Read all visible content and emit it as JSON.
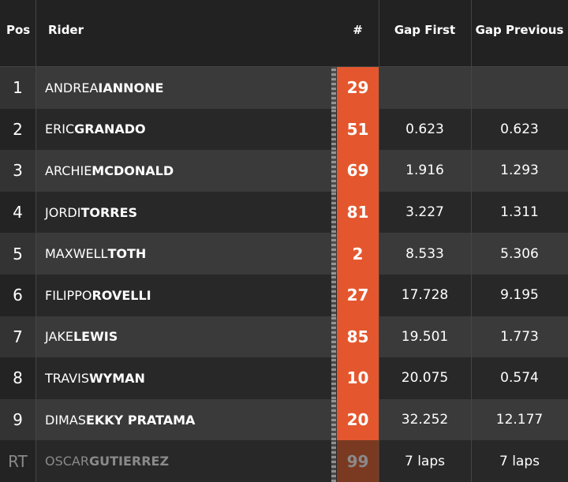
{
  "header": {
    "pos": "Pos",
    "rider": "Rider",
    "number": "#",
    "gap_first": "Gap First",
    "gap_previous": "Gap Previous"
  },
  "rows": [
    {
      "pos": "1",
      "first": "ANDREA",
      "last": "IANNONE",
      "number": "29"
    },
    {
      "pos": "2",
      "first": "ERIC",
      "last": "GRANADO",
      "number": "51",
      "gap_first": "0.623",
      "gap_previous": "0.623"
    },
    {
      "pos": "3",
      "first": "ARCHIE",
      "last": "MCDONALD",
      "number": "69",
      "gap_first": "1.916",
      "gap_previous": "1.293"
    },
    {
      "pos": "4",
      "first": "JORDI",
      "last": "TORRES",
      "number": "81",
      "gap_first": "3.227",
      "gap_previous": "1.311"
    },
    {
      "pos": "5",
      "first": "MAXWELL",
      "last": "TOTH",
      "number": "2",
      "gap_first": "8.533",
      "gap_previous": "5.306"
    },
    {
      "pos": "6",
      "first": "FILIPPO",
      "last": "ROVELLI",
      "number": "27",
      "gap_first": "17.728",
      "gap_previous": "9.195"
    },
    {
      "pos": "7",
      "first": "JAKE",
      "last": "LEWIS",
      "number": "85",
      "gap_first": "19.501",
      "gap_previous": "1.773"
    },
    {
      "pos": "8",
      "first": "TRAVIS",
      "last": "WYMAN",
      "number": "10",
      "gap_first": "20.075",
      "gap_previous": "0.574"
    },
    {
      "pos": "9",
      "first": "DIMAS",
      "last": "EKKY PRATAMA",
      "number": "20",
      "gap_first": "32.252",
      "gap_previous": "12.177"
    },
    {
      "pos": "RT",
      "first": "OSCAR",
      "last": "GUTIERREZ",
      "number": "99",
      "gap_first": "7 laps",
      "gap_previous": "7 laps",
      "retired": true
    }
  ]
}
